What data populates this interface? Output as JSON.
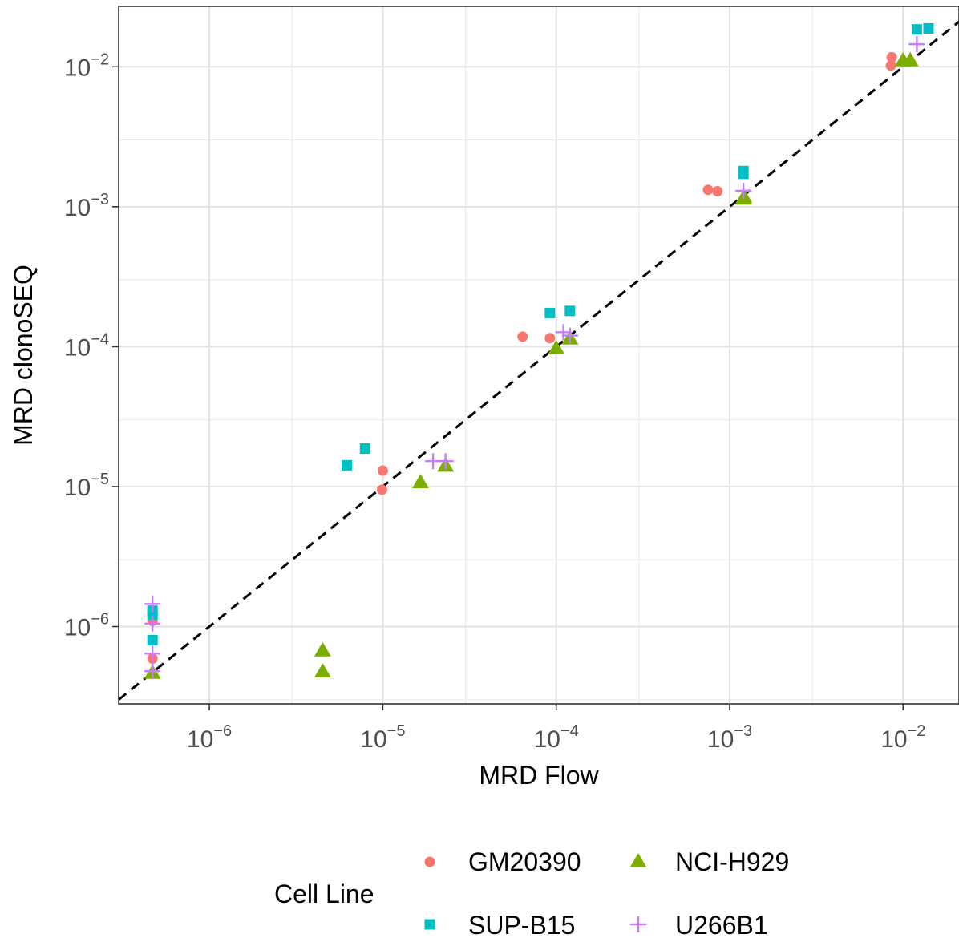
{
  "chart_data": {
    "type": "scatter",
    "xlabel": "MRD Flow",
    "ylabel": "MRD clonoSEQ",
    "x_scale": "log10",
    "y_scale": "log10",
    "xlim": [
      3e-07,
      0.021
    ],
    "ylim": [
      2.8e-07,
      0.027
    ],
    "x_ticks": [
      {
        "value": 1e-06,
        "base": "10",
        "exp": "−6"
      },
      {
        "value": 1e-05,
        "base": "10",
        "exp": "−5"
      },
      {
        "value": 0.0001,
        "base": "10",
        "exp": "−4"
      },
      {
        "value": 0.001,
        "base": "10",
        "exp": "−3"
      },
      {
        "value": 0.01,
        "base": "10",
        "exp": "−2"
      }
    ],
    "y_ticks": [
      {
        "value": 1e-06,
        "base": "10",
        "exp": "−6"
      },
      {
        "value": 1e-05,
        "base": "10",
        "exp": "−5"
      },
      {
        "value": 0.0001,
        "base": "10",
        "exp": "−4"
      },
      {
        "value": 0.001,
        "base": "10",
        "exp": "−3"
      },
      {
        "value": 0.01,
        "base": "10",
        "exp": "−2"
      }
    ],
    "grid": true,
    "reference_line": "y = x",
    "legend_title": "Cell Line",
    "legend_position": "bottom",
    "series": [
      {
        "name": "GM20390",
        "shape": "circle",
        "color": "#F8766D",
        "points": [
          {
            "x": 4.7e-07,
            "y": 1.1e-06
          },
          {
            "x": 4.7e-07,
            "y": 5.9e-07
          },
          {
            "x": 1e-05,
            "y": 1.3e-05
          },
          {
            "x": 9.9e-06,
            "y": 9.5e-06
          },
          {
            "x": 6.4e-05,
            "y": 0.000118
          },
          {
            "x": 9.2e-05,
            "y": 0.000115
          },
          {
            "x": 0.00075,
            "y": 0.00132
          },
          {
            "x": 0.00085,
            "y": 0.00129
          },
          {
            "x": 0.0086,
            "y": 0.0117
          },
          {
            "x": 0.0085,
            "y": 0.0102
          }
        ]
      },
      {
        "name": "NCI-H929",
        "shape": "triangle",
        "color": "#7CAE00",
        "points": [
          {
            "x": 4.7e-07,
            "y": 4.7e-07
          },
          {
            "x": 4.5e-06,
            "y": 6.8e-07
          },
          {
            "x": 4.5e-06,
            "y": 4.8e-07
          },
          {
            "x": 1.65e-05,
            "y": 1.08e-05
          },
          {
            "x": 2.3e-05,
            "y": 1.42e-05
          },
          {
            "x": 0.0001,
            "y": 9.8e-05
          },
          {
            "x": 0.00012,
            "y": 0.000115
          },
          {
            "x": 0.0012,
            "y": 0.00115
          },
          {
            "x": 0.00121,
            "y": 0.00118
          },
          {
            "x": 0.01,
            "y": 0.0112
          },
          {
            "x": 0.011,
            "y": 0.0112
          }
        ]
      },
      {
        "name": "SUP-B15",
        "shape": "square",
        "color": "#00BFC4",
        "points": [
          {
            "x": 4.7e-07,
            "y": 1.3e-06
          },
          {
            "x": 4.7e-07,
            "y": 1.22e-06
          },
          {
            "x": 4.7e-07,
            "y": 8e-07
          },
          {
            "x": 6.2e-06,
            "y": 1.42e-05
          },
          {
            "x": 7.9e-06,
            "y": 1.87e-05
          },
          {
            "x": 9.2e-05,
            "y": 0.000174
          },
          {
            "x": 0.00012,
            "y": 0.00018
          },
          {
            "x": 0.0012,
            "y": 0.00172
          },
          {
            "x": 0.0012,
            "y": 0.0018
          },
          {
            "x": 0.012,
            "y": 0.0185
          },
          {
            "x": 0.014,
            "y": 0.0188
          }
        ]
      },
      {
        "name": "U266B1",
        "shape": "plus",
        "color": "#C77CFF",
        "points": [
          {
            "x": 4.7e-07,
            "y": 1.45e-06
          },
          {
            "x": 4.7e-07,
            "y": 1.05e-06
          },
          {
            "x": 4.7e-07,
            "y": 6.4e-07
          },
          {
            "x": 4.7e-07,
            "y": 4.8e-07
          },
          {
            "x": 1.95e-05,
            "y": 1.52e-05
          },
          {
            "x": 2.3e-05,
            "y": 1.52e-05
          },
          {
            "x": 0.00011,
            "y": 0.000127
          },
          {
            "x": 0.00012,
            "y": 0.00012
          },
          {
            "x": 0.0012,
            "y": 0.0013
          },
          {
            "x": 0.012,
            "y": 0.0145
          }
        ]
      }
    ]
  }
}
